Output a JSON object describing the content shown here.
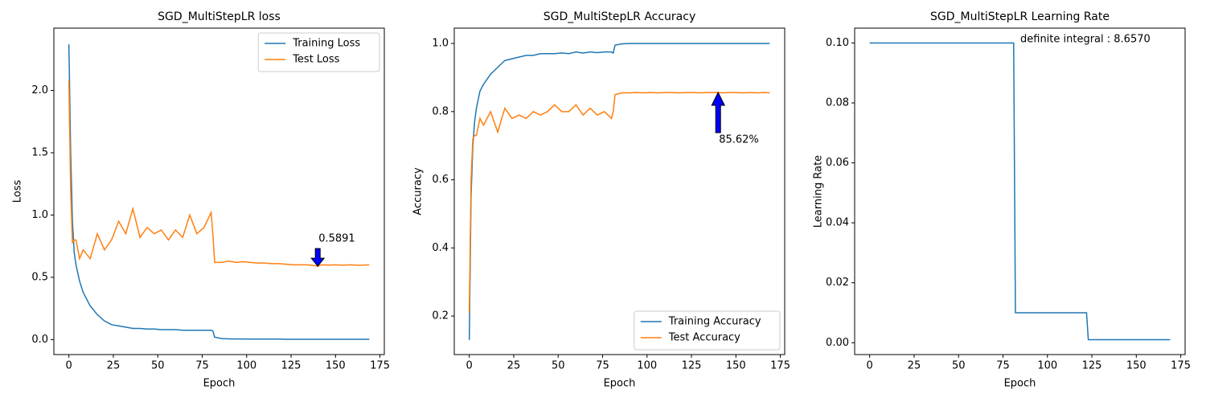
{
  "chart_data": [
    {
      "type": "line",
      "title": "SGD_MultiStepLR loss",
      "xlabel": "Epoch",
      "ylabel": "Loss",
      "x": [
        0,
        1,
        2,
        3,
        4,
        6,
        8,
        12,
        16,
        20,
        24,
        28,
        32,
        36,
        40,
        44,
        48,
        52,
        56,
        60,
        64,
        68,
        72,
        76,
        80,
        81,
        82,
        86,
        90,
        94,
        98,
        102,
        106,
        110,
        114,
        118,
        122,
        126,
        130,
        134,
        138,
        140,
        142,
        146,
        150,
        154,
        158,
        162,
        166,
        169
      ],
      "series": [
        {
          "name": "Training Loss",
          "color": "#1f77b4",
          "values": [
            2.37,
            1.5,
            0.95,
            0.7,
            0.6,
            0.47,
            0.38,
            0.27,
            0.2,
            0.15,
            0.12,
            0.11,
            0.1,
            0.09,
            0.09,
            0.085,
            0.085,
            0.08,
            0.08,
            0.08,
            0.075,
            0.075,
            0.075,
            0.075,
            0.075,
            0.07,
            0.02,
            0.008,
            0.006,
            0.005,
            0.005,
            0.004,
            0.004,
            0.004,
            0.004,
            0.004,
            0.003,
            0.003,
            0.003,
            0.003,
            0.003,
            0.003,
            0.003,
            0.003,
            0.003,
            0.003,
            0.003,
            0.003,
            0.003,
            0.003
          ]
        },
        {
          "name": "Test Loss",
          "color": "#ff7f0e",
          "values": [
            2.08,
            1.2,
            0.78,
            0.8,
            0.8,
            0.65,
            0.72,
            0.65,
            0.85,
            0.72,
            0.8,
            0.95,
            0.85,
            1.05,
            0.82,
            0.9,
            0.85,
            0.88,
            0.8,
            0.88,
            0.82,
            1.0,
            0.85,
            0.9,
            1.02,
            0.85,
            0.62,
            0.62,
            0.63,
            0.62,
            0.625,
            0.62,
            0.615,
            0.615,
            0.61,
            0.61,
            0.605,
            0.6,
            0.6,
            0.6,
            0.595,
            0.5891,
            0.6,
            0.598,
            0.6,
            0.597,
            0.6,
            0.597,
            0.598,
            0.6
          ]
        }
      ],
      "xlim": [
        -8.45,
        177.45
      ],
      "xticks": [
        0,
        25,
        50,
        75,
        100,
        125,
        150,
        175
      ],
      "ylim": [
        -0.12,
        2.5
      ],
      "yticks": [
        {
          "value": 0,
          "label": "0.0"
        },
        0.5,
        {
          "value": 1,
          "label": "1.0"
        },
        1.5,
        {
          "value": 2,
          "label": "2.0"
        }
      ],
      "legend": "upper right",
      "annotations": [
        {
          "x": 140,
          "y": 0.5891,
          "arrow": "down"
        }
      ]
    },
    {
      "type": "line",
      "title": "SGD_MultiStepLR Accuracy",
      "xlabel": "Epoch",
      "ylabel": "Accuracy",
      "x": [
        0,
        1,
        2,
        3,
        4,
        6,
        8,
        12,
        16,
        20,
        24,
        28,
        32,
        36,
        40,
        44,
        48,
        52,
        56,
        60,
        64,
        68,
        72,
        76,
        80,
        81,
        82,
        86,
        90,
        94,
        98,
        102,
        106,
        110,
        114,
        118,
        122,
        126,
        130,
        134,
        138,
        140,
        142,
        146,
        150,
        154,
        158,
        162,
        166,
        169
      ],
      "series": [
        {
          "name": "Training Accuracy",
          "color": "#1f77b4",
          "values": [
            0.13,
            0.55,
            0.7,
            0.77,
            0.81,
            0.86,
            0.88,
            0.91,
            0.93,
            0.95,
            0.955,
            0.96,
            0.965,
            0.965,
            0.97,
            0.97,
            0.97,
            0.972,
            0.97,
            0.975,
            0.972,
            0.975,
            0.973,
            0.975,
            0.975,
            0.972,
            0.995,
            0.999,
            1,
            1,
            1,
            1,
            1,
            1,
            1,
            1,
            1,
            1,
            1,
            1,
            1,
            1,
            1,
            1,
            1,
            1,
            1,
            1,
            1,
            1
          ]
        },
        {
          "name": "Test Accuracy",
          "color": "#ff7f0e",
          "values": [
            0.21,
            0.6,
            0.72,
            0.73,
            0.73,
            0.78,
            0.76,
            0.8,
            0.74,
            0.81,
            0.78,
            0.79,
            0.78,
            0.8,
            0.79,
            0.8,
            0.82,
            0.8,
            0.8,
            0.82,
            0.79,
            0.81,
            0.79,
            0.8,
            0.78,
            0.8,
            0.85,
            0.855,
            0.855,
            0.856,
            0.855,
            0.856,
            0.855,
            0.856,
            0.856,
            0.855,
            0.856,
            0.856,
            0.855,
            0.856,
            0.856,
            0.8562,
            0.855,
            0.856,
            0.856,
            0.855,
            0.856,
            0.855,
            0.856,
            0.855
          ]
        }
      ],
      "xlim": [
        -8.45,
        177.45
      ],
      "xticks": [
        0,
        25,
        50,
        75,
        100,
        125,
        150,
        175
      ],
      "ylim": [
        0.087,
        1.045
      ],
      "yticks": [
        0.2,
        0.4,
        0.6,
        0.8,
        {
          "value": 1,
          "label": "1.0"
        }
      ],
      "legend": "lower right",
      "annotations": [
        {
          "x": 140,
          "y": 0.8562,
          "label": "85.62%",
          "arrow": "up"
        }
      ]
    },
    {
      "type": "line",
      "title": "SGD_MultiStepLR Learning Rate",
      "xlabel": "Epoch",
      "ylabel": "Learning Rate",
      "x": [
        0,
        81,
        82,
        122,
        123,
        169
      ],
      "series": [
        {
          "color": "#1f77b4",
          "values": [
            0.1,
            0.1,
            0.01,
            0.01,
            0.001,
            0.001
          ]
        }
      ],
      "xlim": [
        -8.45,
        177.45
      ],
      "xticks": [
        0,
        25,
        50,
        75,
        100,
        125,
        150,
        175
      ],
      "ylim": [
        -0.00395,
        0.10495
      ],
      "yticks": [
        {
          "value": 0,
          "label": "0.00"
        },
        {
          "value": 0.02,
          "label": "0.02"
        },
        {
          "value": 0.04,
          "label": "0.04"
        },
        {
          "value": 0.06,
          "label": "0.06"
        },
        {
          "value": 0.08,
          "label": "0.08"
        },
        {
          "value": 0.1,
          "label": "0.10"
        }
      ],
      "note": "definite integral : 8.6570"
    }
  ]
}
